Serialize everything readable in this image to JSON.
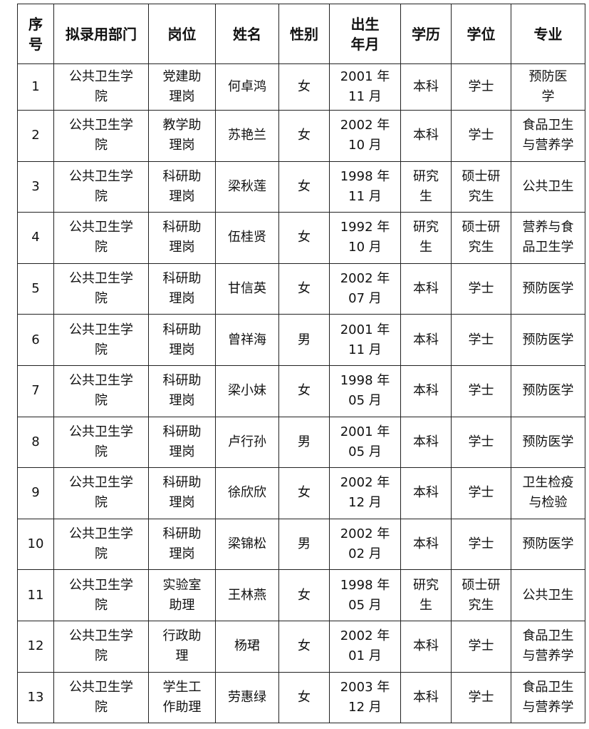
{
  "headers": [
    "序\n号",
    "拟录用部门",
    "岗位",
    "姓名",
    "性别",
    "出生\n年月",
    "学历",
    "学位",
    "专业"
  ],
  "rows": [
    [
      "1",
      "公共卫生学\n院",
      "党建助\n理岗",
      "何卓鸿",
      "女",
      "2001 年\n11 月",
      "本科",
      "学士",
      "预防医\n学"
    ],
    [
      "2",
      "公共卫生学\n院",
      "教学助\n理岗",
      "苏艳兰",
      "女",
      "2002 年\n10 月",
      "本科",
      "学士",
      "食品卫生\n与营养学"
    ],
    [
      "3",
      "公共卫生学\n院",
      "科研助\n理岗",
      "梁秋莲",
      "女",
      "1998 年\n11 月",
      "研究\n生",
      "硕士研\n究生",
      "公共卫生"
    ],
    [
      "4",
      "公共卫生学\n院",
      "科研助\n理岗",
      "伍桂贤",
      "女",
      "1992 年\n10 月",
      "研究\n生",
      "硕士研\n究生",
      "营养与食\n品卫生学"
    ],
    [
      "5",
      "公共卫生学\n院",
      "科研助\n理岗",
      "甘信英",
      "女",
      "2002 年\n07 月",
      "本科",
      "学士",
      "预防医学"
    ],
    [
      "6",
      "公共卫生学\n院",
      "科研助\n理岗",
      "曾祥海",
      "男",
      "2001 年\n11 月",
      "本科",
      "学士",
      "预防医学"
    ],
    [
      "7",
      "公共卫生学\n院",
      "科研助\n理岗",
      "梁小妹",
      "女",
      "1998 年\n05 月",
      "本科",
      "学士",
      "预防医学"
    ],
    [
      "8",
      "公共卫生学\n院",
      "科研助\n理岗",
      "卢行孙",
      "男",
      "2001 年\n05 月",
      "本科",
      "学士",
      "预防医学"
    ],
    [
      "9",
      "公共卫生学\n院",
      "科研助\n理岗",
      "徐欣欣",
      "女",
      "2002 年\n12 月",
      "本科",
      "学士",
      "卫生检疫\n与检验"
    ],
    [
      "10",
      "公共卫生学\n院",
      "科研助\n理岗",
      "梁锦松",
      "男",
      "2002 年\n02 月",
      "本科",
      "学士",
      "预防医学"
    ],
    [
      "11",
      "公共卫生学\n院",
      "实验室\n助理",
      "王林燕",
      "女",
      "1998 年\n05 月",
      "研究\n生",
      "硕士研\n究生",
      "公共卫生"
    ],
    [
      "12",
      "公共卫生学\n院",
      "行政助\n理",
      "杨珺",
      "女",
      "2002 年\n01 月",
      "本科",
      "学士",
      "食品卫生\n与营养学"
    ],
    [
      "13",
      "公共卫生学\n院",
      "学生工\n作助理",
      "劳惠绿",
      "女",
      "2003 年\n12 月",
      "本科",
      "学士",
      "食品卫生\n与营养学"
    ]
  ]
}
